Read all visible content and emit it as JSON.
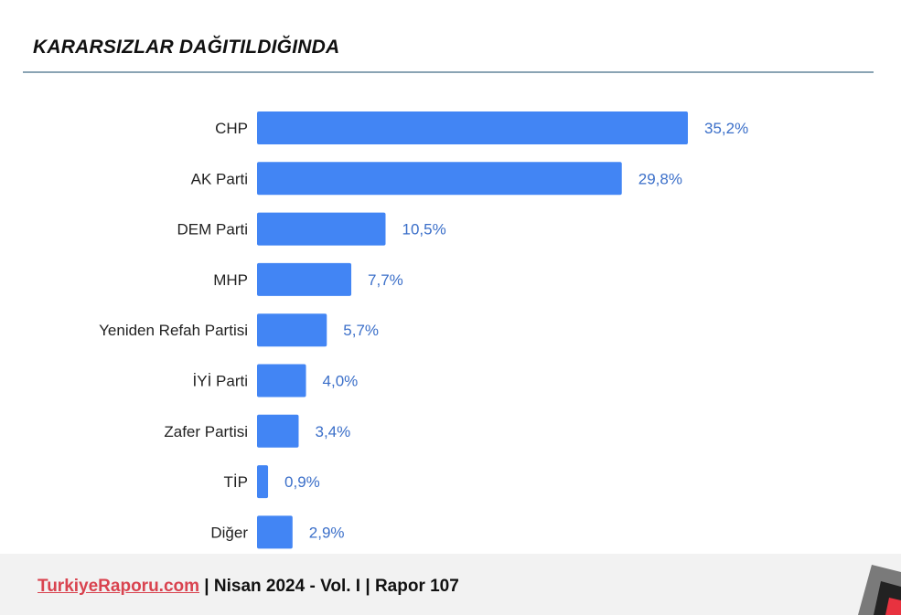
{
  "title": "KARARSIZLAR DAĞITILDIĞINDA",
  "footer": {
    "site": "TurkiyeRaporu.com",
    "sep1": " | ",
    "issue": "Nisan 2024 - Vol. I",
    "sep2": " | ",
    "report": "Rapor 107"
  },
  "colors": {
    "bar": "#4285f4",
    "label": "#3b6fc9",
    "footer_link": "#d9434f"
  },
  "chart_data": {
    "type": "bar",
    "orientation": "horizontal",
    "categories": [
      "CHP",
      "AK Parti",
      "DEM Parti",
      "MHP",
      "Yeniden Refah Partisi",
      "İYİ Parti",
      "Zafer Partisi",
      "TİP",
      "Diğer"
    ],
    "values": [
      35.2,
      29.8,
      10.5,
      7.7,
      5.7,
      4.0,
      3.4,
      0.9,
      2.9
    ],
    "value_labels": [
      "35,2%",
      "29,8%",
      "10,5%",
      "7,7%",
      "5,7%",
      "4,0%",
      "3,4%",
      "0,9%",
      "2,9%"
    ],
    "unit": "%",
    "grid": false
  }
}
